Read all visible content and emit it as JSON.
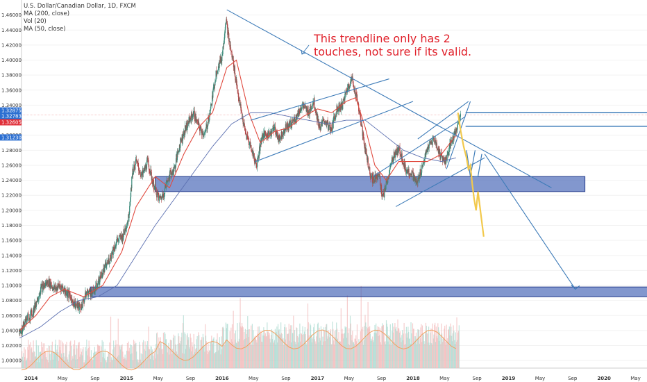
{
  "legend": {
    "title": "U.S. Dollar/Canadian Dollar, 1D, FXCM",
    "indicators": [
      "MA (200, close)",
      "Vol (20)",
      "MA (50, close)"
    ]
  },
  "annotation": {
    "line1": "This trendline only has 2",
    "line2": "touches, not sure if its valid."
  },
  "colors": {
    "trendline": "#3d7bb8",
    "zone_fill": "#3f5fb4",
    "ma50": "#e04a3f",
    "ma200": "#5b6fb0",
    "projection": "#f2c94c",
    "annotation_text": "#e0202a",
    "price_badge_blue": "#2c6fd1",
    "price_badge_red": "#e0303a"
  },
  "chart_data": {
    "type": "candlestick",
    "title": "U.S. Dollar/Canadian Dollar, 1D, FXCM",
    "y_ticks": [
      "1.46000",
      "1.44000",
      "1.42000",
      "1.40000",
      "1.38000",
      "1.36000",
      "1.34000",
      "1.32000",
      "1.30000",
      "1.28000",
      "1.26000",
      "1.24000",
      "1.22000",
      "1.20000",
      "1.18000",
      "1.16000",
      "1.14000",
      "1.12000",
      "1.10000",
      "1.08000",
      "1.06000",
      "1.04000",
      "1.02000",
      "1.00000"
    ],
    "ylim": [
      0.99,
      1.48
    ],
    "x_ticks": [
      {
        "label": "2014",
        "date": 2014.0,
        "bold": true
      },
      {
        "label": "May",
        "date": 2014.33,
        "bold": false
      },
      {
        "label": "Sep",
        "date": 2014.67,
        "bold": false
      },
      {
        "label": "2015",
        "date": 2015.0,
        "bold": true
      },
      {
        "label": "May",
        "date": 2015.33,
        "bold": false
      },
      {
        "label": "Sep",
        "date": 2015.67,
        "bold": false
      },
      {
        "label": "2016",
        "date": 2016.0,
        "bold": true
      },
      {
        "label": "May",
        "date": 2016.33,
        "bold": false
      },
      {
        "label": "Sep",
        "date": 2016.67,
        "bold": false
      },
      {
        "label": "2017",
        "date": 2017.0,
        "bold": true
      },
      {
        "label": "May",
        "date": 2017.33,
        "bold": false
      },
      {
        "label": "Sep",
        "date": 2017.67,
        "bold": false
      },
      {
        "label": "2018",
        "date": 2018.0,
        "bold": true
      },
      {
        "label": "May",
        "date": 2018.33,
        "bold": false
      },
      {
        "label": "Sep",
        "date": 2018.67,
        "bold": false
      },
      {
        "label": "2019",
        "date": 2019.0,
        "bold": true
      },
      {
        "label": "May",
        "date": 2019.33,
        "bold": false
      },
      {
        "label": "Sep",
        "date": 2019.67,
        "bold": false
      },
      {
        "label": "2020",
        "date": 2020.0,
        "bold": true
      },
      {
        "label": "May",
        "date": 2020.33,
        "bold": false
      }
    ],
    "price_badges": [
      {
        "label": "1.32875",
        "value": 1.32875,
        "color": "#2c6fd1"
      },
      {
        "label": "1.32783",
        "value": 1.32783,
        "color": "#2c6fd1"
      },
      {
        "label": "1.32605",
        "value": 1.32605,
        "color": "#e0303a"
      },
      {
        "label": "1.31230",
        "value": 1.3123,
        "color": "#2c6fd1"
      }
    ],
    "price_path": [
      [
        2013.88,
        1.035
      ],
      [
        2013.95,
        1.055
      ],
      [
        2014.02,
        1.065
      ],
      [
        2014.1,
        1.095
      ],
      [
        2014.18,
        1.105
      ],
      [
        2014.25,
        1.095
      ],
      [
        2014.3,
        1.1
      ],
      [
        2014.38,
        1.09
      ],
      [
        2014.46,
        1.075
      ],
      [
        2014.52,
        1.07
      ],
      [
        2014.58,
        1.09
      ],
      [
        2014.66,
        1.092
      ],
      [
        2014.74,
        1.115
      ],
      [
        2014.82,
        1.135
      ],
      [
        2014.9,
        1.16
      ],
      [
        2014.96,
        1.165
      ],
      [
        2015.02,
        1.19
      ],
      [
        2015.06,
        1.25
      ],
      [
        2015.1,
        1.265
      ],
      [
        2015.16,
        1.245
      ],
      [
        2015.22,
        1.265
      ],
      [
        2015.28,
        1.235
      ],
      [
        2015.34,
        1.215
      ],
      [
        2015.38,
        1.22
      ],
      [
        2015.44,
        1.245
      ],
      [
        2015.5,
        1.255
      ],
      [
        2015.56,
        1.29
      ],
      [
        2015.62,
        1.31
      ],
      [
        2015.7,
        1.33
      ],
      [
        2015.76,
        1.31
      ],
      [
        2015.82,
        1.3
      ],
      [
        2015.88,
        1.335
      ],
      [
        2015.94,
        1.385
      ],
      [
        2016.0,
        1.405
      ],
      [
        2016.04,
        1.455
      ],
      [
        2016.08,
        1.42
      ],
      [
        2016.12,
        1.395
      ],
      [
        2016.18,
        1.345
      ],
      [
        2016.24,
        1.305
      ],
      [
        2016.3,
        1.285
      ],
      [
        2016.36,
        1.26
      ],
      [
        2016.42,
        1.3
      ],
      [
        2016.48,
        1.3
      ],
      [
        2016.54,
        1.31
      ],
      [
        2016.6,
        1.295
      ],
      [
        2016.66,
        1.31
      ],
      [
        2016.72,
        1.315
      ],
      [
        2016.78,
        1.325
      ],
      [
        2016.84,
        1.34
      ],
      [
        2016.9,
        1.33
      ],
      [
        2016.96,
        1.345
      ],
      [
        2017.02,
        1.31
      ],
      [
        2017.08,
        1.32
      ],
      [
        2017.14,
        1.305
      ],
      [
        2017.2,
        1.335
      ],
      [
        2017.26,
        1.34
      ],
      [
        2017.32,
        1.365
      ],
      [
        2017.36,
        1.375
      ],
      [
        2017.42,
        1.345
      ],
      [
        2017.48,
        1.295
      ],
      [
        2017.54,
        1.255
      ],
      [
        2017.58,
        1.24
      ],
      [
        2017.64,
        1.25
      ],
      [
        2017.68,
        1.215
      ],
      [
        2017.74,
        1.245
      ],
      [
        2017.8,
        1.275
      ],
      [
        2017.86,
        1.28
      ],
      [
        2017.92,
        1.255
      ],
      [
        2017.98,
        1.25
      ],
      [
        2018.04,
        1.235
      ],
      [
        2018.1,
        1.26
      ],
      [
        2018.16,
        1.285
      ],
      [
        2018.22,
        1.295
      ],
      [
        2018.28,
        1.275
      ],
      [
        2018.34,
        1.265
      ],
      [
        2018.4,
        1.29
      ],
      [
        2018.46,
        1.31
      ],
      [
        2018.5,
        1.325
      ]
    ],
    "ma50": [
      [
        2013.88,
        1.04
      ],
      [
        2014.05,
        1.06
      ],
      [
        2014.2,
        1.085
      ],
      [
        2014.35,
        1.095
      ],
      [
        2014.55,
        1.085
      ],
      [
        2014.75,
        1.1
      ],
      [
        2014.95,
        1.145
      ],
      [
        2015.1,
        1.205
      ],
      [
        2015.3,
        1.245
      ],
      [
        2015.45,
        1.23
      ],
      [
        2015.6,
        1.275
      ],
      [
        2015.75,
        1.31
      ],
      [
        2015.9,
        1.33
      ],
      [
        2016.05,
        1.39
      ],
      [
        2016.15,
        1.4
      ],
      [
        2016.28,
        1.33
      ],
      [
        2016.4,
        1.29
      ],
      [
        2016.55,
        1.305
      ],
      [
        2016.7,
        1.31
      ],
      [
        2016.85,
        1.325
      ],
      [
        2017.0,
        1.335
      ],
      [
        2017.15,
        1.33
      ],
      [
        2017.3,
        1.345
      ],
      [
        2017.4,
        1.35
      ],
      [
        2017.5,
        1.31
      ],
      [
        2017.6,
        1.26
      ],
      [
        2017.72,
        1.24
      ],
      [
        2017.85,
        1.265
      ],
      [
        2018.0,
        1.265
      ],
      [
        2018.15,
        1.265
      ],
      [
        2018.3,
        1.275
      ],
      [
        2018.45,
        1.3
      ]
    ],
    "ma200": [
      [
        2013.88,
        1.03
      ],
      [
        2014.1,
        1.045
      ],
      [
        2014.3,
        1.065
      ],
      [
        2014.5,
        1.08
      ],
      [
        2014.7,
        1.085
      ],
      [
        2014.9,
        1.1
      ],
      [
        2015.1,
        1.14
      ],
      [
        2015.3,
        1.18
      ],
      [
        2015.5,
        1.215
      ],
      [
        2015.7,
        1.25
      ],
      [
        2015.9,
        1.285
      ],
      [
        2016.1,
        1.315
      ],
      [
        2016.3,
        1.33
      ],
      [
        2016.5,
        1.33
      ],
      [
        2016.7,
        1.325
      ],
      [
        2016.9,
        1.32
      ],
      [
        2017.1,
        1.315
      ],
      [
        2017.3,
        1.32
      ],
      [
        2017.5,
        1.32
      ],
      [
        2017.7,
        1.3
      ],
      [
        2017.9,
        1.28
      ],
      [
        2018.1,
        1.27
      ],
      [
        2018.3,
        1.265
      ],
      [
        2018.45,
        1.27
      ]
    ],
    "projection": [
      [
        2018.47,
        1.33
      ],
      [
        2018.5,
        1.305
      ],
      [
        2018.53,
        1.285
      ],
      [
        2018.56,
        1.27
      ],
      [
        2018.58,
        1.255
      ],
      [
        2018.6,
        1.26
      ],
      [
        2018.62,
        1.235
      ],
      [
        2018.64,
        1.215
      ],
      [
        2018.66,
        1.2
      ],
      [
        2018.68,
        1.225
      ],
      [
        2018.7,
        1.205
      ],
      [
        2018.72,
        1.185
      ],
      [
        2018.74,
        1.165
      ]
    ],
    "trendlines": [
      {
        "from": [
          2016.05,
          1.467
        ],
        "to": [
          2019.45,
          1.23
        ]
      },
      {
        "from": [
          2016.3,
          1.32
        ],
        "to": [
          2017.75,
          1.375
        ]
      },
      {
        "from": [
          2016.35,
          1.265
        ],
        "to": [
          2018.0,
          1.345
        ]
      },
      {
        "from": [
          2017.58,
          1.245
        ],
        "to": [
          2018.55,
          1.325
        ]
      },
      {
        "from": [
          2017.82,
          1.205
        ],
        "to": [
          2018.75,
          1.27
        ]
      },
      {
        "from": [
          2018.35,
          1.255
        ],
        "to": [
          2018.6,
          1.345
        ]
      },
      {
        "from": [
          2018.05,
          1.295
        ],
        "to": [
          2018.58,
          1.345
        ]
      },
      {
        "from": [
          2018.75,
          1.275
        ],
        "to": [
          2019.7,
          1.095
        ]
      }
    ],
    "zones": [
      {
        "x1": 2015.3,
        "x2": 2019.8,
        "y1": 1.245,
        "y2": 1.225
      },
      {
        "x1": 2014.62,
        "x2": 2020.5,
        "y1": 1.098,
        "y2": 1.085
      }
    ],
    "levels": [
      {
        "x1": 2018.55,
        "value": 1.33
      },
      {
        "x1": 2018.55,
        "value": 1.312
      }
    ]
  }
}
